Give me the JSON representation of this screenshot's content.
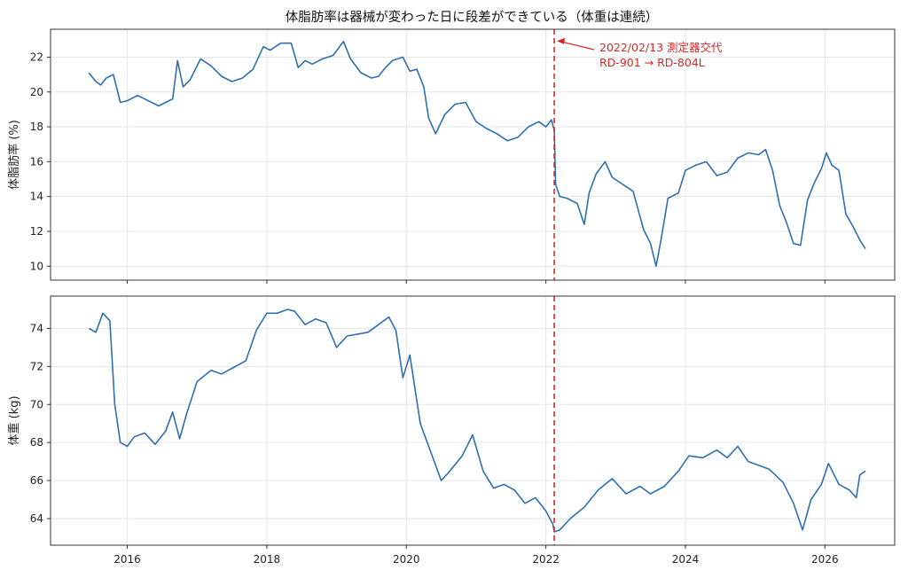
{
  "chart_data": {
    "type": "line",
    "title": "体脂肪率は器械が変わった日に段差ができている（体重は連続）",
    "xlim": [
      2014.9,
      2027.0
    ],
    "x_ticks": [
      "2016",
      "2018",
      "2020",
      "2022",
      "2024",
      "2026"
    ],
    "x_tick_values": [
      2016,
      2018,
      2020,
      2022,
      2024,
      2026
    ],
    "grid": true,
    "line_color": "#2f6fb0",
    "marker_color": "#d62728",
    "change_date": "2022/02/13",
    "change_x": 2022.12,
    "annotation": {
      "line1": "2022/02/13 測定器交代",
      "line2": "RD-901 → RD-804L"
    },
    "panels": [
      {
        "ylabel": "体脂肪率 (%)",
        "ylim": [
          9.2,
          23.6
        ],
        "y_ticks": [
          10,
          12,
          14,
          16,
          18,
          20,
          22
        ],
        "series": [
          {
            "x": [
              2015.45,
              2015.55,
              2015.62,
              2015.7,
              2015.8,
              2015.9,
              2016.0,
              2016.15,
              2016.3,
              2016.45,
              2016.55,
              2016.65,
              2016.72,
              2016.8,
              2016.9,
              2017.05,
              2017.2,
              2017.35,
              2017.5,
              2017.65,
              2017.8,
              2017.95,
              2018.05,
              2018.2,
              2018.35,
              2018.45,
              2018.55,
              2018.65,
              2018.8,
              2018.95,
              2019.1,
              2019.2,
              2019.35,
              2019.5,
              2019.6,
              2019.7,
              2019.8,
              2019.95,
              2020.05,
              2020.15,
              2020.25,
              2020.32,
              2020.42,
              2020.55,
              2020.7,
              2020.85,
              2021.0,
              2021.15,
              2021.3,
              2021.45,
              2021.6,
              2021.75,
              2021.9,
              2022.0,
              2022.08,
              2022.12,
              2022.14,
              2022.2,
              2022.3,
              2022.45,
              2022.55,
              2022.62,
              2022.72,
              2022.85,
              2022.95,
              2023.1,
              2023.25,
              2023.4,
              2023.5,
              2023.58,
              2023.65,
              2023.75,
              2023.9,
              2024.0,
              2024.15,
              2024.3,
              2024.45,
              2024.6,
              2024.75,
              2024.9,
              2025.05,
              2025.15,
              2025.25,
              2025.35,
              2025.45,
              2025.55,
              2025.65,
              2025.75,
              2025.85,
              2025.95,
              2026.02,
              2026.1,
              2026.2,
              2026.3,
              2026.4,
              2026.5,
              2026.58
            ],
            "y": [
              21.1,
              20.6,
              20.4,
              20.8,
              21.0,
              19.4,
              19.5,
              19.8,
              19.5,
              19.2,
              19.4,
              19.6,
              21.8,
              20.3,
              20.7,
              21.9,
              21.5,
              20.9,
              20.6,
              20.8,
              21.3,
              22.6,
              22.4,
              22.8,
              22.8,
              21.4,
              21.8,
              21.6,
              21.9,
              22.1,
              22.9,
              21.9,
              21.1,
              20.8,
              20.9,
              21.4,
              21.8,
              22.0,
              21.2,
              21.3,
              20.3,
              18.5,
              17.6,
              18.7,
              19.3,
              19.4,
              18.3,
              17.9,
              17.6,
              17.2,
              17.4,
              18.0,
              18.3,
              18.0,
              18.4,
              17.8,
              14.7,
              14.0,
              13.9,
              13.6,
              12.4,
              14.2,
              15.3,
              16.0,
              15.1,
              14.7,
              14.3,
              12.1,
              11.3,
              10.0,
              11.5,
              13.9,
              14.2,
              15.5,
              15.8,
              16.0,
              15.2,
              15.4,
              16.2,
              16.5,
              16.4,
              16.7,
              15.5,
              13.5,
              12.5,
              11.3,
              11.2,
              13.8,
              14.8,
              15.6,
              16.5,
              15.8,
              15.5,
              13.0,
              12.3,
              11.5,
              11.0
            ]
          }
        ]
      },
      {
        "ylabel": "体重 (kg)",
        "ylim": [
          62.6,
          75.7
        ],
        "y_ticks": [
          64,
          66,
          68,
          70,
          72,
          74
        ],
        "series": [
          {
            "x": [
              2015.45,
              2015.55,
              2015.65,
              2015.75,
              2015.82,
              2015.9,
              2016.0,
              2016.1,
              2016.25,
              2016.4,
              2016.55,
              2016.65,
              2016.75,
              2016.85,
              2017.0,
              2017.2,
              2017.35,
              2017.5,
              2017.7,
              2017.85,
              2018.0,
              2018.15,
              2018.3,
              2018.4,
              2018.55,
              2018.7,
              2018.85,
              2019.0,
              2019.15,
              2019.3,
              2019.45,
              2019.6,
              2019.75,
              2019.85,
              2019.95,
              2020.05,
              2020.2,
              2020.35,
              2020.5,
              2020.6,
              2020.8,
              2020.95,
              2021.1,
              2021.25,
              2021.4,
              2021.55,
              2021.7,
              2021.85,
              2022.0,
              2022.1,
              2022.12,
              2022.2,
              2022.35,
              2022.55,
              2022.75,
              2022.95,
              2023.15,
              2023.35,
              2023.5,
              2023.7,
              2023.9,
              2024.05,
              2024.25,
              2024.45,
              2024.6,
              2024.75,
              2024.9,
              2025.05,
              2025.2,
              2025.4,
              2025.55,
              2025.68,
              2025.8,
              2025.95,
              2026.05,
              2026.2,
              2026.35,
              2026.45,
              2026.5,
              2026.58
            ],
            "y": [
              74.0,
              73.8,
              74.8,
              74.4,
              70.0,
              68.0,
              67.8,
              68.3,
              68.5,
              67.9,
              68.6,
              69.6,
              68.2,
              69.5,
              71.2,
              71.8,
              71.6,
              71.9,
              72.3,
              73.9,
              74.8,
              74.8,
              75.0,
              74.9,
              74.2,
              74.5,
              74.3,
              73.0,
              73.6,
              73.7,
              73.8,
              74.2,
              74.6,
              73.9,
              71.4,
              72.6,
              69.0,
              67.5,
              66.0,
              66.4,
              67.3,
              68.4,
              66.5,
              65.6,
              65.8,
              65.5,
              64.8,
              65.1,
              64.4,
              63.7,
              63.3,
              63.4,
              64.0,
              64.6,
              65.5,
              66.1,
              65.3,
              65.7,
              65.3,
              65.7,
              66.5,
              67.3,
              67.2,
              67.6,
              67.2,
              67.8,
              67.0,
              66.8,
              66.6,
              65.9,
              64.8,
              63.4,
              65.0,
              65.8,
              66.9,
              65.8,
              65.5,
              65.1,
              66.3,
              66.5
            ]
          }
        ]
      }
    ]
  }
}
